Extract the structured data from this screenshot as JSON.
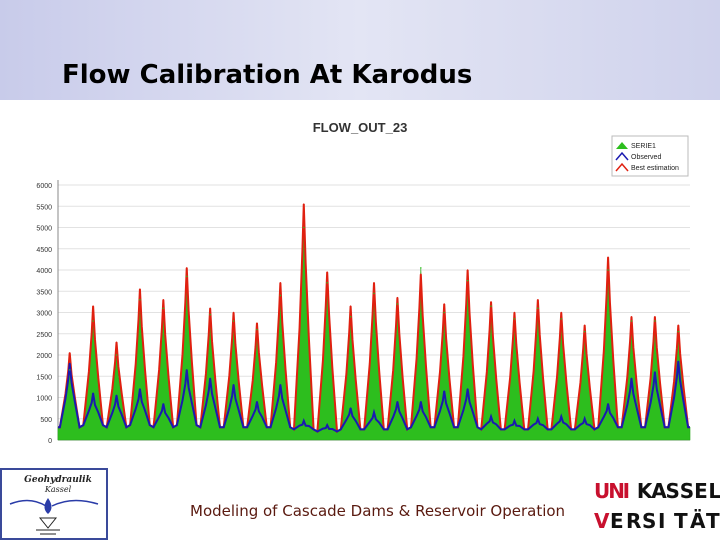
{
  "slide": {
    "title": "Flow Calibration At Karodus",
    "footer": "Modeling of Cascade Dams & Reservoir Operation"
  },
  "logos": {
    "left": {
      "line1": "Geohydraulik",
      "line2": "Kassel"
    },
    "right": {
      "row1": [
        "U",
        "N",
        "I",
        "K",
        "A",
        "S",
        "S",
        "E",
        "L"
      ],
      "row2": [
        "V",
        "E",
        "R",
        "S",
        "I",
        "T",
        "Ä",
        "T"
      ]
    }
  },
  "colors": {
    "simulated": "#2dbe1e",
    "observed": "#1a1ab0",
    "best": "#e02010"
  },
  "chart_data": {
    "type": "area",
    "title": "FLOW_OUT_23",
    "yticks": [
      0,
      500,
      1000,
      1500,
      2000,
      2500,
      3000,
      3500,
      4000,
      4500,
      5000,
      5500,
      6000
    ],
    "ylim": [
      0,
      6000
    ],
    "legend": [
      "SERIE1",
      "Observed",
      "Best estimation"
    ],
    "legend_position": "top-right",
    "grid": true,
    "peaks": {
      "x": [
        1,
        2,
        3,
        4,
        5,
        6,
        7,
        8,
        9,
        10,
        11,
        12,
        13,
        14,
        15,
        16,
        17,
        18,
        19,
        20,
        21,
        22,
        23,
        24,
        25,
        26,
        27
      ],
      "best_estimation": [
        2050,
        3150,
        2300,
        3550,
        3300,
        4050,
        3100,
        3000,
        2750,
        3700,
        5550,
        3950,
        3150,
        3700,
        3350,
        3900,
        3200,
        4000,
        3250,
        3000,
        3300,
        3000,
        2700,
        4300,
        2900,
        2900,
        2700
      ],
      "serie1": [
        1650,
        2800,
        2000,
        3300,
        3100,
        3850,
        2950,
        2800,
        2600,
        3400,
        5000,
        3700,
        2900,
        3450,
        3200,
        4050,
        3000,
        3750,
        3150,
        2850,
        3100,
        2850,
        2550,
        4000,
        2800,
        2800,
        2550
      ],
      "observed": [
        1800,
        1100,
        1050,
        1200,
        850,
        1650,
        1450,
        1300,
        900,
        1300,
        450,
        350,
        750,
        650,
        900,
        900,
        1150,
        1200,
        550,
        450,
        500,
        550,
        500,
        850,
        1450,
        1600,
        1850
      ],
      "baseline": [
        300,
        350,
        300,
        350,
        300,
        350,
        300,
        300,
        300,
        300,
        250,
        200,
        250,
        250,
        250,
        300,
        300,
        300,
        250,
        250,
        250,
        250,
        250,
        300,
        300,
        300,
        300
      ]
    }
  }
}
